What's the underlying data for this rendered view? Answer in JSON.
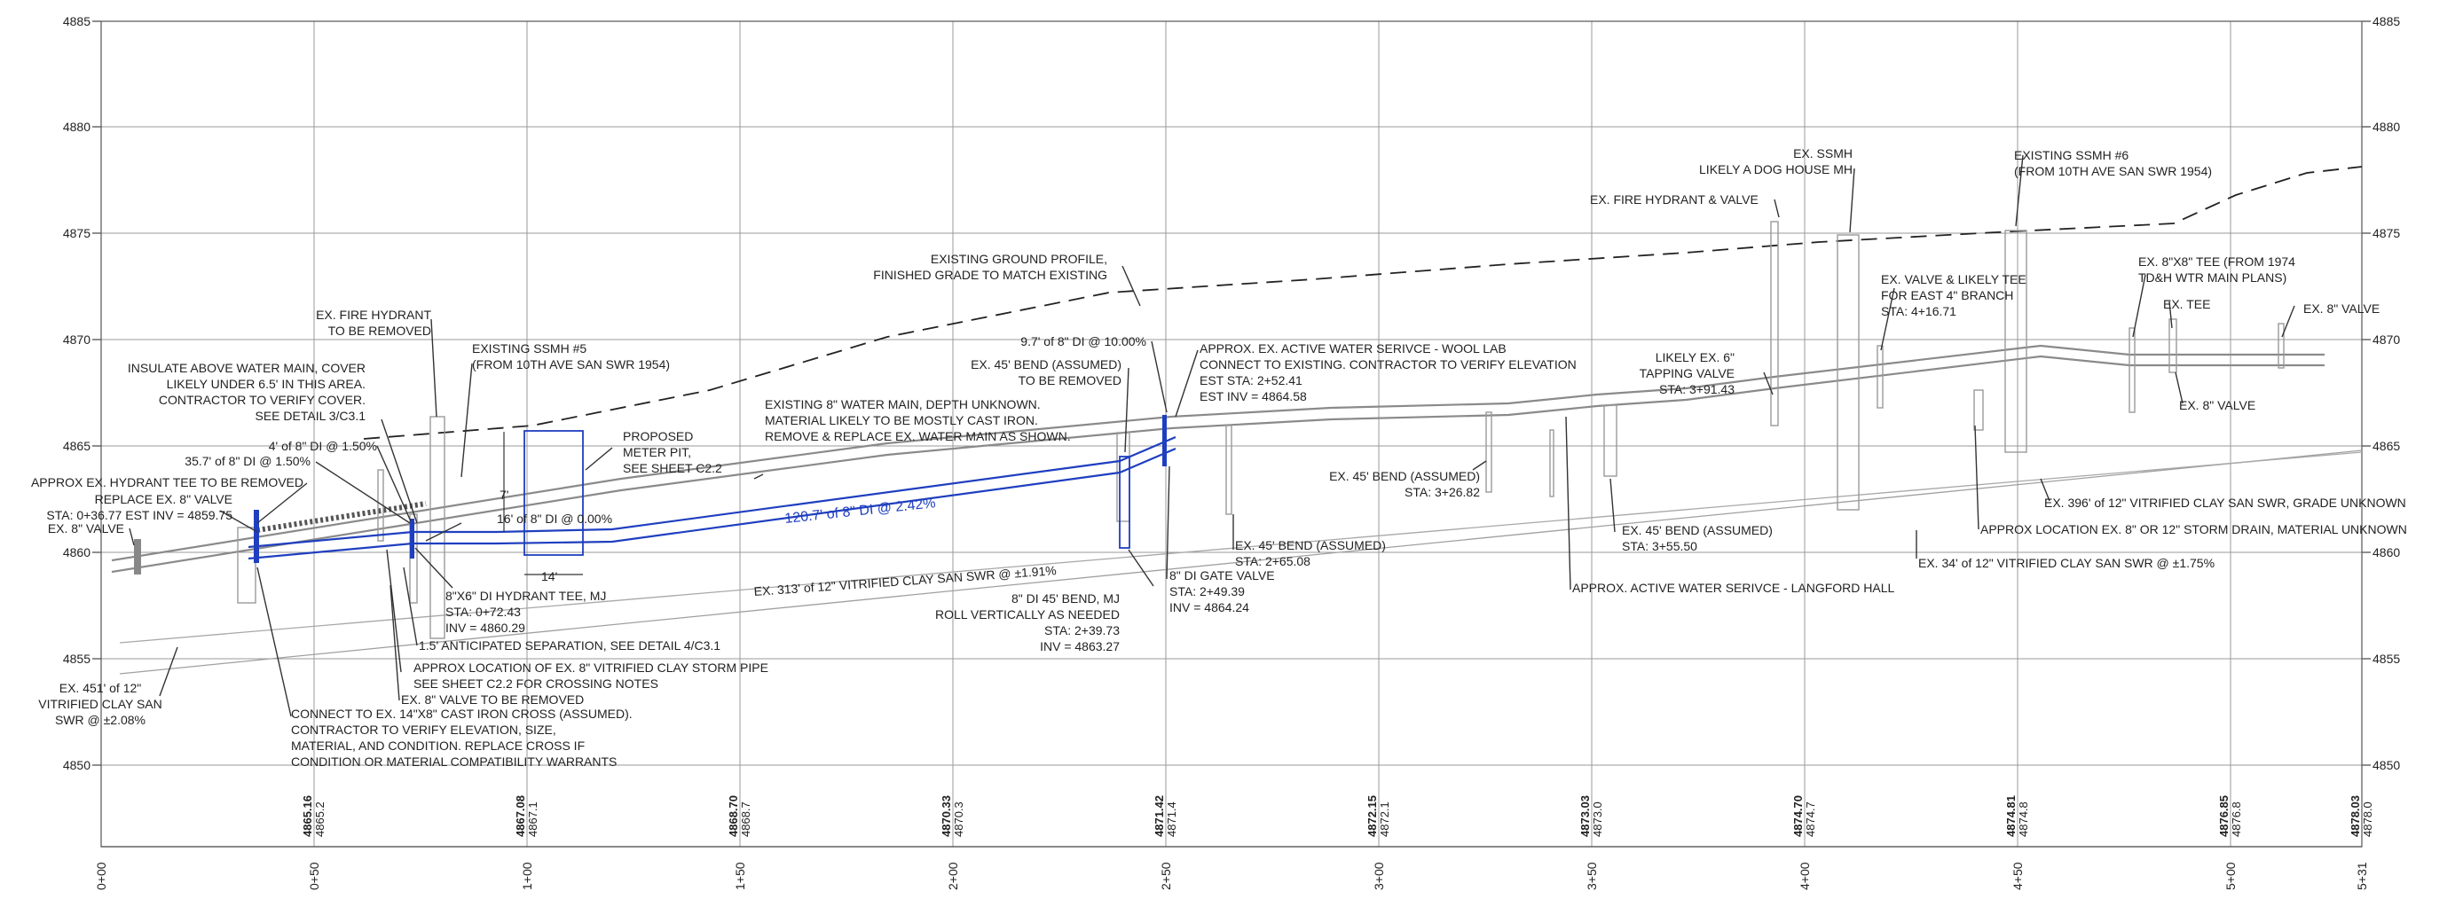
{
  "elevations": [
    "4885",
    "4880",
    "4875",
    "4870",
    "4865",
    "4860",
    "4855",
    "4850"
  ],
  "stations": [
    "0+00",
    "0+50",
    "1+00",
    "1+50",
    "2+00",
    "2+50",
    "3+00",
    "3+50",
    "4+00",
    "4+50",
    "5+00",
    "5+31"
  ],
  "grades": [
    {
      "existing": "4865.16",
      "finished": "4865.2"
    },
    {
      "existing": "4867.08",
      "finished": "4867.1"
    },
    {
      "existing": "4868.70",
      "finished": "4868.7"
    },
    {
      "existing": "4870.33",
      "finished": "4870.3"
    },
    {
      "existing": "4871.42",
      "finished": "4871.4"
    },
    {
      "existing": "4872.15",
      "finished": "4872.1"
    },
    {
      "existing": "4873.03",
      "finished": "4873.0"
    },
    {
      "existing": "4874.70",
      "finished": "4874.7"
    },
    {
      "existing": "4874.81",
      "finished": "4874.8"
    },
    {
      "existing": "4876.85",
      "finished": "4876.8"
    },
    {
      "existing": "4878.03",
      "finished": "4878.0"
    }
  ],
  "colors": {
    "proposed": "#1f3fbf",
    "existing": "#8c8c8c",
    "grid": "#9a9a9a"
  },
  "notes": {
    "ex_fire_hydrant_remove": [
      "EX. FIRE HYDRANT",
      "TO BE REMOVED"
    ],
    "existing_ssmh5": [
      "EXISTING SSMH #5",
      "(FROM 10TH AVE SAN SWR 1954)"
    ],
    "insulate": [
      "INSULATE ABOVE WATER MAIN, COVER",
      "LIKELY UNDER 6.5' IN THIS AREA.",
      "CONTRACTOR TO VERIFY COVER.",
      "SEE DETAIL 3/C3.1"
    ],
    "di_4_150": "4' of 8\" DI @ 1.50%",
    "di_357_150": "35.7' of 8\" DI @ 1.50%",
    "approx_hydrant_tee": "APPROX EX. HYDRANT TEE TO BE REMOVED",
    "replace_valve": [
      "REPLACE EX. 8\" VALVE",
      "STA: 0+36.77 EST INV = 4859.75"
    ],
    "ex8_valve_left": "EX. 8\" VALVE",
    "proposed_meter_pit": [
      "PROPOSED",
      "METER PIT,",
      "SEE SHEET C2.2"
    ],
    "dim_7": "7'",
    "dim_14": "14'",
    "di_16_000": "16' of 8\" DI @ 0.00%",
    "hydrant_tee": [
      "8\"X6\" DI HYDRANT TEE, MJ",
      "STA: 0+72.43",
      "INV = 4860.29"
    ],
    "separation": "1.5' ANTICIPATED SEPARATION, SEE DETAIL 4/C3.1",
    "storm_pipe": [
      "APPROX LOCATION OF EX. 8\" VITRIFIED CLAY STORM PIPE",
      "SEE SHEET C2.2 FOR CROSSING NOTES"
    ],
    "valve_remove": "EX. 8\" VALVE TO BE REMOVED",
    "connect_cross": [
      "CONNECT TO EX. 14\"X8\" CAST IRON CROSS (ASSUMED).",
      "CONTRACTOR TO VERIFY ELEVATION, SIZE,",
      "MATERIAL, AND CONDITION. REPLACE CROSS IF",
      "CONDITION OR MATERIAL COMPATIBILITY WARRANTS"
    ],
    "ex451": [
      "EX. 451' of 12\"",
      "VITRIFIED CLAY SAN",
      "SWR @ ±2.08%"
    ],
    "existing_water_main": [
      "EXISTING 8\" WATER MAIN, DEPTH UNKNOWN.",
      "MATERIAL LIKELY TO BE MOSTLY CAST IRON.",
      "REMOVE & REPLACE EX. WATER MAIN AS SHOWN."
    ],
    "di_1207": "120.7' of 8\" DI @ 2.42%",
    "ex313": "EX. 313' of 12\" VITRIFIED CLAY SAN SWR @ ±1.91%",
    "ground_profile": [
      "EXISTING GROUND PROFILE,",
      "FINISHED GRADE TO MATCH EXISTING"
    ],
    "di_97": "9.7' of 8\" DI @ 10.00%",
    "bend_remove": [
      "EX. 45' BEND (ASSUMED)",
      "TO BE REMOVED"
    ],
    "active_service_wool": [
      "APPROX. EX. ACTIVE WATER SERIVCE - WOOL LAB",
      "CONNECT TO EXISTING. CONTRACTOR TO VERIFY ELEVATION",
      "EST STA: 2+52.41",
      "EST INV = 4864.58"
    ],
    "bend_di": [
      "8\" DI 45' BEND, MJ",
      "ROLL VERTICALLY AS NEEDED",
      "STA: 2+39.73",
      "INV = 4863.27"
    ],
    "gate_valve": [
      "8\" DI GATE VALVE",
      "STA: 2+49.39",
      "INV = 4864.24"
    ],
    "bend_26508": [
      "EX. 45' BEND (ASSUMED)",
      "STA: 2+65.08"
    ],
    "bend_32682": [
      "EX. 45' BEND (ASSUMED)",
      "STA: 3+26.82"
    ],
    "bend_35550": [
      "EX. 45' BEND (ASSUMED)",
      "STA: 3+55.50"
    ],
    "langford": "APPROX. ACTIVE WATER SERIVCE - LANGFORD HALL",
    "tapping_valve": [
      "LIKELY EX. 6\"",
      "TAPPING VALVE",
      "STA: 3+91.43"
    ],
    "fire_hydrant_valve": "EX. FIRE HYDRANT & VALVE",
    "ex_ssmh": [
      "EX. SSMH",
      "LIKELY A DOG HOUSE MH"
    ],
    "ex_valve_tee": [
      "EX. VALVE & LIKELY TEE",
      "FOR EAST 4\" BRANCH",
      "STA: 4+16.71"
    ],
    "existing_ssmh6": [
      "EXISTING SSMH #6",
      "(FROM 10TH AVE SAN SWR 1954)"
    ],
    "tee_1974": [
      "EX. 8\"X8\" TEE (FROM 1974",
      "TD&H WTR MAIN PLANS)"
    ],
    "ex_tee": "EX. TEE",
    "ex8_valve_right": "EX. 8\" VALVE",
    "ex8_valve_low": "EX. 8\" VALVE",
    "ex34": "EX. 34' of 12\" VITRIFIED CLAY SAN SWR @ ±1.75%",
    "storm_drain": "APPROX LOCATION EX. 8\" OR 12\" STORM DRAIN, MATERIAL UNKNOWN",
    "ex396": "EX. 396' of 12\" VITRIFIED CLAY SAN SWR, GRADE UNKNOWN"
  }
}
